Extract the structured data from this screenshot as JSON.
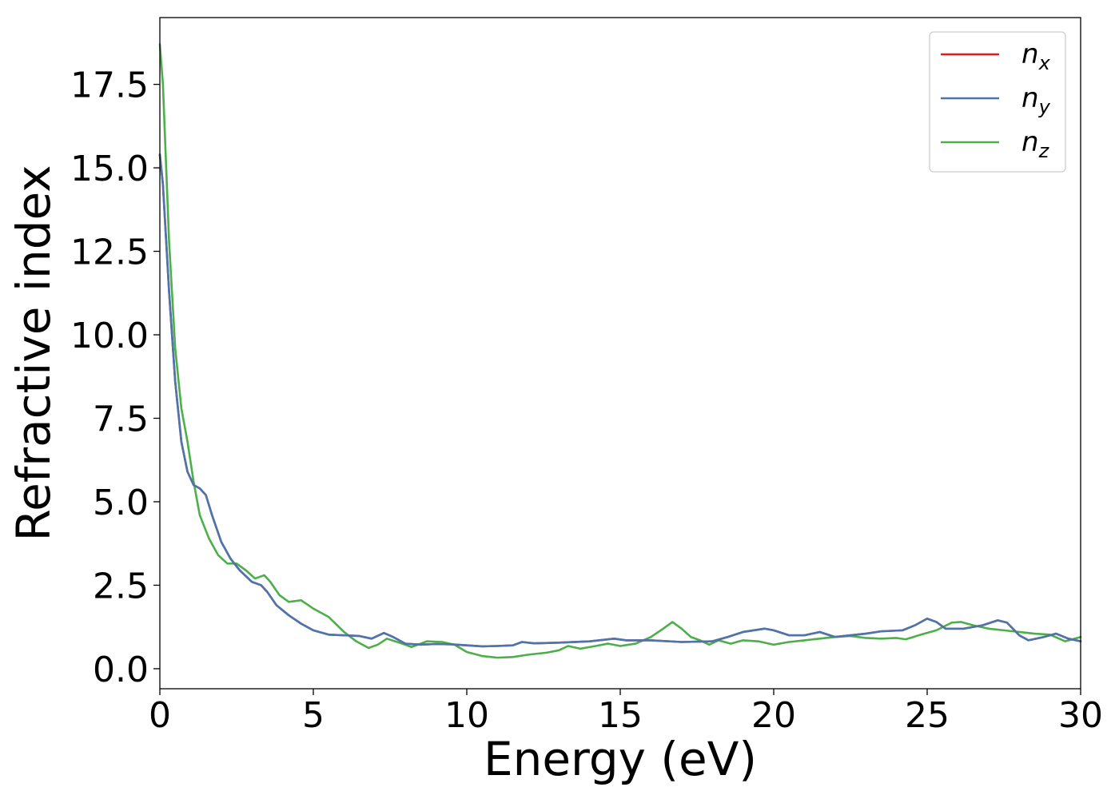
{
  "chart_data": {
    "type": "line",
    "title": "",
    "xlabel": "Energy (eV)",
    "ylabel": "Refractive index",
    "xlim": [
      0,
      30
    ],
    "ylim": [
      -0.6,
      19.5
    ],
    "xticks": [
      "0",
      "5",
      "10",
      "15",
      "20",
      "25",
      "30"
    ],
    "yticks": [
      "0.0",
      "2.5",
      "5.0",
      "7.5",
      "10.0",
      "12.5",
      "15.0",
      "17.5"
    ],
    "grid": false,
    "legend_position": "top-right",
    "series": [
      {
        "name": "n_x",
        "legend_base": "n",
        "legend_sub": "x",
        "color": "#e41a1c",
        "points": [
          [
            0,
            15.4
          ],
          [
            0.1,
            14.5
          ],
          [
            0.3,
            11.3
          ],
          [
            0.5,
            8.6
          ],
          [
            0.7,
            6.8
          ],
          [
            0.9,
            5.9
          ],
          [
            1.1,
            5.5
          ],
          [
            1.3,
            5.4
          ],
          [
            1.5,
            5.2
          ],
          [
            1.7,
            4.6
          ],
          [
            2.0,
            3.8
          ],
          [
            2.3,
            3.3
          ],
          [
            2.6,
            2.95
          ],
          [
            3.0,
            2.6
          ],
          [
            3.3,
            2.5
          ],
          [
            3.5,
            2.3
          ],
          [
            3.8,
            1.9
          ],
          [
            4.2,
            1.6
          ],
          [
            4.6,
            1.35
          ],
          [
            5.0,
            1.15
          ],
          [
            5.5,
            1.02
          ],
          [
            6.0,
            1.0
          ],
          [
            6.5,
            0.98
          ],
          [
            6.9,
            0.9
          ],
          [
            7.3,
            1.07
          ],
          [
            7.6,
            0.95
          ],
          [
            8.0,
            0.75
          ],
          [
            8.5,
            0.72
          ],
          [
            9.0,
            0.74
          ],
          [
            9.5,
            0.73
          ],
          [
            10.0,
            0.7
          ],
          [
            10.5,
            0.67
          ],
          [
            11.0,
            0.68
          ],
          [
            11.5,
            0.7
          ],
          [
            11.8,
            0.8
          ],
          [
            12.2,
            0.76
          ],
          [
            13.0,
            0.78
          ],
          [
            14.0,
            0.82
          ],
          [
            14.8,
            0.9
          ],
          [
            15.2,
            0.85
          ],
          [
            16.0,
            0.85
          ],
          [
            17.0,
            0.8
          ],
          [
            18.0,
            0.82
          ],
          [
            18.5,
            0.95
          ],
          [
            19.0,
            1.1
          ],
          [
            19.7,
            1.2
          ],
          [
            20.0,
            1.15
          ],
          [
            20.5,
            1.0
          ],
          [
            21.0,
            1.0
          ],
          [
            21.5,
            1.1
          ],
          [
            22.0,
            0.95
          ],
          [
            23.0,
            1.05
          ],
          [
            23.5,
            1.12
          ],
          [
            24.2,
            1.15
          ],
          [
            24.6,
            1.3
          ],
          [
            25.0,
            1.5
          ],
          [
            25.3,
            1.4
          ],
          [
            25.6,
            1.2
          ],
          [
            26.2,
            1.2
          ],
          [
            26.8,
            1.3
          ],
          [
            27.3,
            1.45
          ],
          [
            27.6,
            1.38
          ],
          [
            28.0,
            1.0
          ],
          [
            28.3,
            0.85
          ],
          [
            28.8,
            0.95
          ],
          [
            29.2,
            1.05
          ],
          [
            29.6,
            0.9
          ],
          [
            30.0,
            0.82
          ]
        ]
      },
      {
        "name": "n_y",
        "legend_base": "n",
        "legend_sub": "y",
        "color": "#4a76b0",
        "points": [
          [
            0,
            15.4
          ],
          [
            0.1,
            14.5
          ],
          [
            0.3,
            11.3
          ],
          [
            0.5,
            8.6
          ],
          [
            0.7,
            6.8
          ],
          [
            0.9,
            5.9
          ],
          [
            1.1,
            5.5
          ],
          [
            1.3,
            5.4
          ],
          [
            1.5,
            5.2
          ],
          [
            1.7,
            4.6
          ],
          [
            2.0,
            3.8
          ],
          [
            2.3,
            3.3
          ],
          [
            2.6,
            2.95
          ],
          [
            3.0,
            2.6
          ],
          [
            3.3,
            2.5
          ],
          [
            3.5,
            2.3
          ],
          [
            3.8,
            1.9
          ],
          [
            4.2,
            1.6
          ],
          [
            4.6,
            1.35
          ],
          [
            5.0,
            1.15
          ],
          [
            5.5,
            1.02
          ],
          [
            6.0,
            1.0
          ],
          [
            6.5,
            0.98
          ],
          [
            6.9,
            0.9
          ],
          [
            7.3,
            1.07
          ],
          [
            7.6,
            0.95
          ],
          [
            8.0,
            0.75
          ],
          [
            8.5,
            0.72
          ],
          [
            9.0,
            0.74
          ],
          [
            9.5,
            0.73
          ],
          [
            10.0,
            0.7
          ],
          [
            10.5,
            0.67
          ],
          [
            11.0,
            0.68
          ],
          [
            11.5,
            0.7
          ],
          [
            11.8,
            0.8
          ],
          [
            12.2,
            0.76
          ],
          [
            13.0,
            0.78
          ],
          [
            14.0,
            0.82
          ],
          [
            14.8,
            0.9
          ],
          [
            15.2,
            0.85
          ],
          [
            16.0,
            0.85
          ],
          [
            17.0,
            0.8
          ],
          [
            18.0,
            0.82
          ],
          [
            18.5,
            0.95
          ],
          [
            19.0,
            1.1
          ],
          [
            19.7,
            1.2
          ],
          [
            20.0,
            1.15
          ],
          [
            20.5,
            1.0
          ],
          [
            21.0,
            1.0
          ],
          [
            21.5,
            1.1
          ],
          [
            22.0,
            0.95
          ],
          [
            23.0,
            1.05
          ],
          [
            23.5,
            1.12
          ],
          [
            24.2,
            1.15
          ],
          [
            24.6,
            1.3
          ],
          [
            25.0,
            1.5
          ],
          [
            25.3,
            1.4
          ],
          [
            25.6,
            1.2
          ],
          [
            26.2,
            1.2
          ],
          [
            26.8,
            1.3
          ],
          [
            27.3,
            1.45
          ],
          [
            27.6,
            1.38
          ],
          [
            28.0,
            1.0
          ],
          [
            28.3,
            0.85
          ],
          [
            28.8,
            0.95
          ],
          [
            29.2,
            1.05
          ],
          [
            29.6,
            0.9
          ],
          [
            30.0,
            0.82
          ]
        ]
      },
      {
        "name": "n_z",
        "legend_base": "n",
        "legend_sub": "z",
        "color": "#4daf4a",
        "points": [
          [
            0,
            18.7
          ],
          [
            0.1,
            17.5
          ],
          [
            0.3,
            12.8
          ],
          [
            0.5,
            9.6
          ],
          [
            0.7,
            7.8
          ],
          [
            0.9,
            6.8
          ],
          [
            1.1,
            5.6
          ],
          [
            1.3,
            4.6
          ],
          [
            1.6,
            3.9
          ],
          [
            1.9,
            3.4
          ],
          [
            2.2,
            3.15
          ],
          [
            2.5,
            3.15
          ],
          [
            2.8,
            2.95
          ],
          [
            3.1,
            2.7
          ],
          [
            3.4,
            2.8
          ],
          [
            3.6,
            2.6
          ],
          [
            3.9,
            2.2
          ],
          [
            4.2,
            2.0
          ],
          [
            4.6,
            2.05
          ],
          [
            5.0,
            1.8
          ],
          [
            5.5,
            1.55
          ],
          [
            6.0,
            1.1
          ],
          [
            6.4,
            0.82
          ],
          [
            6.8,
            0.62
          ],
          [
            7.1,
            0.72
          ],
          [
            7.4,
            0.9
          ],
          [
            7.8,
            0.78
          ],
          [
            8.2,
            0.65
          ],
          [
            8.7,
            0.82
          ],
          [
            9.2,
            0.8
          ],
          [
            9.6,
            0.72
          ],
          [
            10.0,
            0.5
          ],
          [
            10.5,
            0.38
          ],
          [
            11.0,
            0.33
          ],
          [
            11.5,
            0.35
          ],
          [
            12.0,
            0.42
          ],
          [
            12.6,
            0.48
          ],
          [
            13.0,
            0.55
          ],
          [
            13.3,
            0.68
          ],
          [
            13.7,
            0.6
          ],
          [
            14.2,
            0.68
          ],
          [
            14.6,
            0.75
          ],
          [
            15.0,
            0.68
          ],
          [
            15.5,
            0.75
          ],
          [
            16.0,
            0.95
          ],
          [
            16.4,
            1.2
          ],
          [
            16.7,
            1.4
          ],
          [
            17.0,
            1.2
          ],
          [
            17.3,
            0.95
          ],
          [
            17.6,
            0.85
          ],
          [
            17.9,
            0.72
          ],
          [
            18.2,
            0.85
          ],
          [
            18.6,
            0.75
          ],
          [
            19.0,
            0.85
          ],
          [
            19.5,
            0.82
          ],
          [
            20.0,
            0.72
          ],
          [
            20.5,
            0.8
          ],
          [
            21.0,
            0.85
          ],
          [
            21.5,
            0.9
          ],
          [
            22.0,
            0.95
          ],
          [
            22.5,
            0.98
          ],
          [
            23.0,
            0.92
          ],
          [
            23.5,
            0.9
          ],
          [
            24.0,
            0.92
          ],
          [
            24.3,
            0.88
          ],
          [
            24.8,
            1.02
          ],
          [
            25.3,
            1.15
          ],
          [
            25.8,
            1.38
          ],
          [
            26.1,
            1.4
          ],
          [
            26.5,
            1.3
          ],
          [
            27.0,
            1.2
          ],
          [
            27.5,
            1.15
          ],
          [
            28.0,
            1.1
          ],
          [
            28.5,
            1.05
          ],
          [
            29.0,
            1.02
          ],
          [
            29.5,
            0.82
          ],
          [
            30.0,
            0.95
          ]
        ]
      }
    ]
  }
}
